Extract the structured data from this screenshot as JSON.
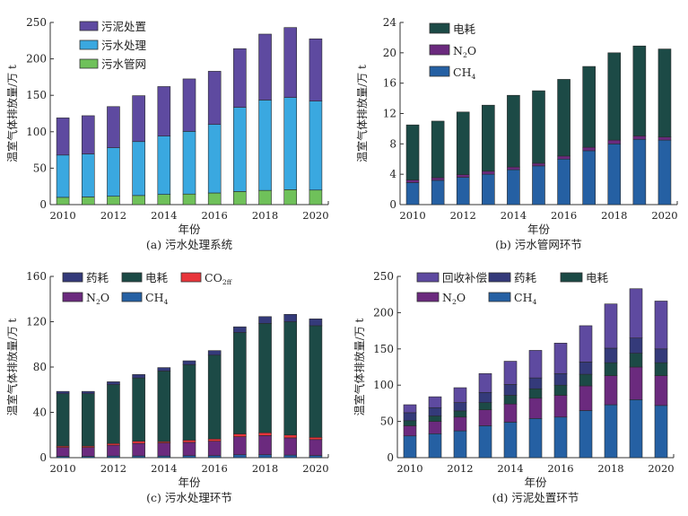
{
  "chart_data": [
    {
      "id": "a",
      "type": "bar",
      "stacked": true,
      "caption": "(a)  污水处理系统",
      "xlabel": "年份",
      "ylabel": "温室气体排放量/万 t",
      "ylim": [
        0,
        250
      ],
      "yticks": [
        0,
        50,
        100,
        150,
        200,
        250
      ],
      "xtick_labels": [
        "2010",
        "2012",
        "2014",
        "2016",
        "2018",
        "2020"
      ],
      "categories": [
        "2010",
        "2011",
        "2012",
        "2013",
        "2014",
        "2015",
        "2016",
        "2017",
        "2018",
        "2019",
        "2020"
      ],
      "legend_position": "top-left",
      "legend_cols": 1,
      "series": [
        {
          "name": "污水管网",
          "color": "#6fc15a",
          "values": [
            10,
            10.5,
            11.5,
            12.5,
            14,
            14.5,
            16,
            18,
            19.5,
            20.5,
            20
          ]
        },
        {
          "name": "污水处理",
          "color": "#3aa8e0",
          "values": [
            58,
            59,
            66.5,
            74,
            80,
            86,
            94,
            115.5,
            124,
            126.5,
            122
          ]
        },
        {
          "name": "污泥处置",
          "color": "#5e4aa0",
          "values": [
            51,
            52.5,
            56.5,
            63,
            68,
            72,
            73,
            80.5,
            90.5,
            96,
            85.5
          ]
        }
      ],
      "legend_order": [
        "污泥处置",
        "污水处理",
        "污水管网"
      ]
    },
    {
      "id": "b",
      "type": "bar",
      "stacked": true,
      "caption": "(b)  污水管网环节",
      "xlabel": "年份",
      "ylabel": "温室气体排放量/万 t",
      "ylim": [
        0,
        24
      ],
      "yticks": [
        0,
        4,
        8,
        12,
        16,
        20,
        24
      ],
      "xtick_labels": [
        "2010",
        "2012",
        "2014",
        "2016",
        "2018",
        "2020"
      ],
      "categories": [
        "2010",
        "2011",
        "2012",
        "2013",
        "2014",
        "2015",
        "2016",
        "2017",
        "2018",
        "2019",
        "2020"
      ],
      "legend_position": "top-left",
      "legend_cols": 1,
      "series": [
        {
          "name": "CH",
          "sub": "4",
          "color": "#2560a3",
          "values": [
            2.9,
            3.2,
            3.6,
            4.0,
            4.6,
            5.1,
            6.0,
            7.1,
            8.0,
            8.6,
            8.5
          ]
        },
        {
          "name": "N",
          "sub": "2",
          "tail": "O",
          "color": "#6b2a7e",
          "values": [
            0.35,
            0.35,
            0.35,
            0.4,
            0.35,
            0.35,
            0.4,
            0.45,
            0.5,
            0.45,
            0.4
          ]
        },
        {
          "name": "电耗",
          "color": "#1c4a46",
          "values": [
            7.25,
            7.45,
            8.25,
            8.7,
            9.45,
            9.55,
            10.1,
            10.65,
            11.5,
            11.85,
            11.6
          ]
        }
      ],
      "legend_order": [
        "电耗",
        "N2O",
        "CH4"
      ]
    },
    {
      "id": "c",
      "type": "bar",
      "stacked": true,
      "caption": "(c)  污水处理环节",
      "xlabel": "年份",
      "ylabel": "温室气体排放量/万 t",
      "ylim": [
        0,
        160
      ],
      "yticks": [
        0,
        40,
        80,
        120,
        160
      ],
      "xtick_labels": [
        "2010",
        "2012",
        "2014",
        "2016",
        "2018",
        "2020"
      ],
      "categories": [
        "2010",
        "2011",
        "2012",
        "2013",
        "2014",
        "2015",
        "2016",
        "2017",
        "2018",
        "2019",
        "2020"
      ],
      "legend_position": "top-left",
      "legend_cols": 3,
      "series": [
        {
          "name": "CH",
          "sub": "4",
          "color": "#2560a3",
          "values": [
            1.2,
            1.2,
            1.5,
            1.6,
            1.5,
            1.8,
            1.8,
            2.6,
            2.6,
            2.3,
            1.9
          ]
        },
        {
          "name": "N",
          "sub": "2",
          "tail": "O",
          "color": "#6b2a7e",
          "values": [
            7.8,
            7.8,
            9.5,
            11.0,
            11.5,
            11.7,
            12.7,
            15.9,
            16.9,
            15.2,
            14.1
          ]
        },
        {
          "name": "CO",
          "sub": "2ff",
          "color": "#e8353b",
          "values": [
            1.2,
            1.2,
            1.5,
            2.0,
            1.2,
            2.0,
            2.0,
            2.5,
            2.5,
            2.5,
            2.0
          ]
        },
        {
          "name": "电耗",
          "color": "#1c4a46",
          "values": [
            46.3,
            46.3,
            52.0,
            55.8,
            62.3,
            66.5,
            74.0,
            89.5,
            96.5,
            100.0,
            98.5
          ]
        },
        {
          "name": "药耗",
          "color": "#343a7a",
          "values": [
            2.0,
            2.0,
            2.5,
            3.0,
            3.0,
            3.5,
            4.0,
            5.0,
            6.0,
            6.5,
            6.0
          ]
        }
      ],
      "legend_order": [
        "药耗",
        "电耗",
        "CO2ff",
        "N2O",
        "CH4"
      ]
    },
    {
      "id": "d",
      "type": "bar",
      "stacked": true,
      "caption": "(d)  污泥处置环节",
      "xlabel": "年份",
      "ylabel": "温室气体排放量/万 t",
      "ylim": [
        0,
        250
      ],
      "yticks": [
        0,
        50,
        100,
        150,
        200,
        250
      ],
      "xtick_labels": [
        "2010",
        "2012",
        "2014",
        "2016",
        "2018",
        "2020"
      ],
      "categories": [
        "2010",
        "2011",
        "2012",
        "2013",
        "2014",
        "2015",
        "2016",
        "2017",
        "2018",
        "2019",
        "2020"
      ],
      "legend_position": "top-left",
      "legend_cols": 3,
      "series": [
        {
          "name": "CH",
          "sub": "4",
          "color": "#2560a3",
          "values": [
            30,
            33,
            37,
            44,
            49,
            54,
            56,
            65,
            73,
            80,
            72
          ]
        },
        {
          "name": "N",
          "sub": "2",
          "tail": "O",
          "color": "#6b2a7e",
          "values": [
            14,
            17,
            19,
            22,
            25,
            28,
            30,
            34,
            40,
            45,
            41
          ]
        },
        {
          "name": "电耗",
          "color": "#1c4a46",
          "values": [
            7,
            7.5,
            8.5,
            10,
            12,
            13,
            14,
            16,
            18,
            19,
            18
          ]
        },
        {
          "name": "药耗",
          "color": "#343a7a",
          "values": [
            11,
            11.5,
            11.5,
            14,
            15,
            15,
            16,
            17,
            20,
            21,
            19
          ]
        },
        {
          "name": "回收补偿",
          "color": "#5e4aa0",
          "values": [
            11,
            15,
            20.5,
            26,
            32,
            38,
            42,
            50,
            61,
            68,
            66
          ]
        }
      ],
      "legend_order": [
        "回收补偿",
        "药耗",
        "电耗",
        "N2O",
        "CH4"
      ]
    }
  ]
}
